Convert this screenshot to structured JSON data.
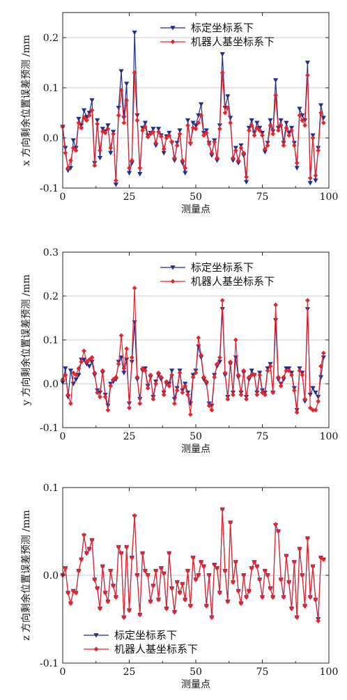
{
  "colors": {
    "blue": "#1f2f8c",
    "red": "#e8242a",
    "grid": "#c8c8c8",
    "axis": "#222222"
  },
  "chart_data": [
    {
      "type": "line",
      "ylabel": "x 方向剩余位置误差预测 /mm",
      "xlabel": "测量点",
      "xlim": [
        0,
        100
      ],
      "ylim": [
        -0.1,
        0.25
      ],
      "xticks": [
        "0",
        "25",
        "50",
        "75",
        "100"
      ],
      "yticks": [
        "-0.1",
        "0.0",
        "0.1",
        "0.2"
      ],
      "ytick_values": [
        -0.1,
        0.0,
        0.1,
        0.2
      ],
      "grid": true,
      "legend": "top-center",
      "series": [
        {
          "name": "标定坐标系下",
          "color": "#1f2f8c",
          "marker": "triangle-down",
          "values": [
            0.022,
            -0.02,
            -0.065,
            -0.06,
            -0.005,
            -0.02,
            0.038,
            0.025,
            0.055,
            0.042,
            0.05,
            0.075,
            -0.05,
            0.035,
            -0.04,
            0.018,
            0.013,
            0.025,
            -0.03,
            0.012,
            -0.093,
            0.06,
            0.133,
            0.04,
            0.108,
            -0.07,
            -0.05,
            0.21,
            0.045,
            -0.072,
            0.02,
            0.03,
            0.005,
            0.01,
            0.018,
            -0.015,
            0.018,
            0.005,
            -0.03,
            0.003,
            0.01,
            -0.01,
            -0.045,
            -0.01,
            0.015,
            -0.05,
            -0.07,
            0.035,
            -0.012,
            0.03,
            0.025,
            0.045,
            0.067,
            0.01,
            0.015,
            -0.01,
            -0.035,
            -0.005,
            -0.045,
            0.025,
            0.167,
            0.06,
            0.083,
            0.04,
            -0.045,
            -0.02,
            -0.05,
            -0.015,
            -0.035,
            -0.088,
            0.02,
            0.035,
            0.01,
            0.03,
            0.02,
            0.01,
            -0.028,
            -0.01,
            0.035,
            0.013,
            0.115,
            0.02,
            0.035,
            -0.01,
            0.03,
            0.01,
            0.02,
            -0.01,
            -0.06,
            0.058,
            0.045,
            0.035,
            0.15,
            -0.09,
            0.005,
            -0.085,
            -0.02,
            0.065,
            0.04
          ]
        },
        {
          "name": "机器人基坐标系下",
          "color": "#e8242a",
          "marker": "diamond",
          "values": [
            0.022,
            -0.03,
            -0.06,
            -0.045,
            -0.02,
            -0.025,
            0.03,
            0.02,
            0.04,
            0.035,
            0.045,
            0.055,
            -0.055,
            0.028,
            -0.025,
            0.013,
            0.01,
            0.018,
            -0.02,
            0.008,
            -0.085,
            0.045,
            0.095,
            0.03,
            0.075,
            -0.06,
            -0.045,
            0.13,
            0.035,
            -0.06,
            0.015,
            0.022,
            0.002,
            0.008,
            0.012,
            -0.01,
            0.012,
            0.003,
            -0.022,
            0.0,
            0.005,
            -0.008,
            -0.04,
            -0.015,
            0.008,
            -0.045,
            -0.06,
            0.025,
            -0.01,
            0.02,
            0.018,
            0.03,
            0.045,
            0.005,
            0.01,
            -0.012,
            -0.03,
            -0.008,
            -0.04,
            0.018,
            0.13,
            0.05,
            0.06,
            0.03,
            -0.04,
            -0.025,
            -0.045,
            -0.02,
            -0.03,
            -0.078,
            0.015,
            0.025,
            0.005,
            0.02,
            0.015,
            0.005,
            -0.022,
            -0.015,
            0.025,
            0.008,
            0.085,
            0.015,
            0.025,
            -0.015,
            0.02,
            0.005,
            0.015,
            -0.015,
            -0.05,
            0.045,
            0.035,
            0.025,
            0.125,
            -0.08,
            0.0,
            -0.075,
            -0.025,
            0.05,
            0.03
          ]
        }
      ]
    },
    {
      "type": "line",
      "ylabel": "y 方向剩余位置误差预测 /mm",
      "xlabel": "测量点",
      "xlim": [
        0,
        100
      ],
      "ylim": [
        -0.1,
        0.3
      ],
      "xticks": [
        "0",
        "25",
        "50",
        "75",
        "100"
      ],
      "yticks": [
        "-0.1",
        "0.0",
        "0.1",
        "0.2",
        "0.3"
      ],
      "ytick_values": [
        -0.1,
        0.0,
        0.1,
        0.2,
        0.3
      ],
      "grid": true,
      "legend": "top-center",
      "series": [
        {
          "name": "标定坐标系下",
          "color": "#1f2f8c",
          "marker": "triangle-down",
          "values": [
            0.003,
            0.035,
            -0.03,
            0.03,
            0.0,
            0.01,
            0.02,
            0.055,
            0.055,
            0.045,
            0.04,
            0.05,
            0.02,
            -0.015,
            -0.02,
            0.025,
            -0.025,
            -0.05,
            0.0,
            0.005,
            0.01,
            0.05,
            0.06,
            0.025,
            0.055,
            -0.045,
            0.05,
            0.14,
            0.01,
            -0.035,
            0.03,
            0.035,
            -0.005,
            0.015,
            -0.03,
            0.005,
            0.02,
            0.01,
            -0.02,
            0.0,
            0.0,
            0.03,
            -0.035,
            -0.01,
            0.03,
            -0.015,
            0.0,
            -0.02,
            -0.045,
            0.02,
            0.03,
            0.085,
            0.06,
            0.01,
            0.0,
            -0.045,
            -0.05,
            0.02,
            0.04,
            0.05,
            0.17,
            0.02,
            -0.03,
            0.045,
            -0.02,
            0.06,
            0.015,
            -0.02,
            0.025,
            -0.03,
            0.01,
            0.03,
            0.02,
            -0.02,
            0.025,
            -0.015,
            -0.02,
            0.035,
            0.045,
            -0.02,
            0.145,
            0.01,
            0.0,
            0.01,
            0.035,
            0.035,
            0.025,
            -0.01,
            -0.06,
            0.035,
            0.025,
            -0.04,
            0.17,
            -0.025,
            -0.01,
            -0.02,
            -0.03,
            0.015,
            0.06
          ]
        },
        {
          "name": "机器人基坐标系下",
          "color": "#e8242a",
          "marker": "diamond",
          "values": [
            0.01,
            0.02,
            -0.025,
            -0.045,
            0.025,
            0.02,
            0.035,
            0.05,
            0.075,
            0.05,
            0.055,
            0.06,
            0.025,
            -0.02,
            -0.03,
            0.03,
            -0.03,
            -0.06,
            -0.005,
            0.01,
            0.015,
            0.045,
            0.11,
            0.035,
            0.08,
            -0.055,
            0.06,
            0.218,
            0.015,
            -0.045,
            0.035,
            0.03,
            -0.01,
            0.02,
            -0.035,
            0.0,
            0.025,
            0.015,
            -0.025,
            0.005,
            -0.005,
            0.02,
            -0.045,
            -0.015,
            0.025,
            -0.02,
            -0.005,
            -0.025,
            -0.07,
            0.015,
            0.025,
            0.105,
            0.065,
            0.015,
            0.005,
            -0.05,
            -0.06,
            0.015,
            0.045,
            0.06,
            0.19,
            0.025,
            -0.035,
            0.05,
            -0.025,
            0.1,
            0.02,
            -0.025,
            0.03,
            -0.035,
            0.015,
            0.02,
            0.02,
            -0.025,
            0.02,
            -0.02,
            -0.025,
            0.03,
            0.04,
            -0.02,
            0.18,
            0.015,
            -0.005,
            0.015,
            0.03,
            0.03,
            0.02,
            -0.015,
            -0.065,
            0.03,
            0.02,
            -0.035,
            0.19,
            -0.055,
            -0.06,
            -0.06,
            -0.04,
            0.04,
            0.07
          ]
        }
      ]
    },
    {
      "type": "line",
      "ylabel": "z 方向剩余位置误差预测 /mm",
      "xlabel": "测量点",
      "xlim": [
        0,
        100
      ],
      "ylim": [
        -0.1,
        0.1
      ],
      "xticks": [
        "0",
        "25",
        "50",
        "75",
        "100"
      ],
      "yticks": [
        "-0.1",
        "0.0",
        "0.1"
      ],
      "ytick_values": [
        -0.1,
        0.0,
        0.1
      ],
      "grid": true,
      "legend": "bottom-left",
      "series": [
        {
          "name": "标定坐标系下",
          "color": "#1f2f8c",
          "marker": "triangle-down",
          "values": [
            0.0,
            0.008,
            -0.02,
            -0.032,
            -0.018,
            -0.02,
            0.005,
            0.018,
            0.045,
            0.025,
            0.03,
            0.04,
            -0.005,
            -0.015,
            -0.038,
            0.01,
            -0.02,
            -0.03,
            0.005,
            -0.012,
            -0.025,
            0.032,
            0.025,
            -0.048,
            0.032,
            -0.04,
            0.02,
            0.067,
            0.0,
            -0.045,
            0.025,
            0.005,
            0.0,
            -0.03,
            -0.012,
            0.005,
            -0.028,
            0.008,
            0.002,
            -0.038,
            0.025,
            -0.015,
            -0.042,
            -0.008,
            -0.02,
            -0.01,
            -0.028,
            0.005,
            -0.035,
            0.02,
            -0.005,
            0.0,
            0.015,
            0.01,
            -0.035,
            0.0,
            -0.048,
            0.012,
            0.008,
            -0.02,
            0.075,
            0.005,
            -0.03,
            0.06,
            -0.008,
            0.015,
            -0.018,
            -0.032,
            0.0,
            -0.025,
            -0.018,
            0.008,
            0.015,
            0.01,
            -0.005,
            -0.025,
            0.005,
            0.0,
            -0.015,
            -0.025,
            0.057,
            0.05,
            -0.005,
            -0.025,
            0.022,
            -0.008,
            -0.038,
            0.015,
            -0.048,
            0.03,
            0.0,
            -0.035,
            0.042,
            -0.025,
            0.01,
            -0.028,
            -0.05,
            0.02,
            0.018
          ]
        },
        {
          "name": "机器人基坐标系下",
          "color": "#e8242a",
          "marker": "diamond",
          "values": [
            0.0,
            0.008,
            -0.02,
            -0.032,
            -0.018,
            -0.02,
            0.005,
            0.018,
            0.046,
            0.025,
            0.03,
            0.04,
            -0.005,
            -0.015,
            -0.038,
            0.01,
            -0.02,
            -0.03,
            0.005,
            -0.012,
            -0.025,
            0.032,
            0.025,
            -0.048,
            0.032,
            -0.04,
            0.02,
            0.068,
            0.0,
            -0.045,
            0.025,
            0.005,
            0.0,
            -0.03,
            -0.012,
            0.005,
            -0.028,
            0.008,
            0.002,
            -0.038,
            0.025,
            -0.015,
            -0.042,
            -0.008,
            -0.02,
            -0.01,
            -0.028,
            0.005,
            -0.035,
            0.02,
            -0.005,
            0.0,
            0.015,
            0.01,
            -0.035,
            0.0,
            -0.048,
            0.012,
            0.008,
            -0.02,
            0.075,
            0.005,
            -0.03,
            0.06,
            -0.008,
            0.015,
            -0.018,
            -0.032,
            0.0,
            -0.025,
            -0.018,
            0.008,
            0.015,
            0.01,
            -0.005,
            -0.025,
            0.005,
            0.0,
            -0.015,
            -0.025,
            0.058,
            0.05,
            -0.005,
            -0.025,
            0.022,
            -0.008,
            -0.038,
            0.015,
            -0.048,
            0.03,
            0.0,
            -0.035,
            0.042,
            -0.025,
            0.01,
            -0.028,
            -0.052,
            0.02,
            0.018
          ]
        }
      ]
    }
  ]
}
